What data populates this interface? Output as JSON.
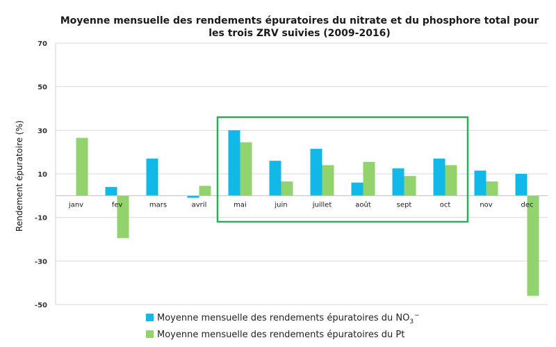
{
  "chart_data": {
    "type": "bar",
    "title_lines": [
      "Moyenne mensuelle des rendements épuratoires du nitrate et du phosphore total pour",
      "les trois ZRV suivies (2009-2016)"
    ],
    "ylabel": "Rendement épuratoire (%)",
    "xlabel": "",
    "ylim": [
      -50,
      70
    ],
    "yticks": [
      -50,
      -30,
      -10,
      10,
      30,
      50,
      70
    ],
    "grid": true,
    "legend_position": "bottom",
    "categories": [
      "janv",
      "fev",
      "mars",
      "avril",
      "mai",
      "juin",
      "juillet",
      "août",
      "sept",
      "oct",
      "nov",
      "dec"
    ],
    "series": [
      {
        "name": "Moyenne mensuelle des rendements épuratoires du NO3−",
        "legend_main": "Moyenne mensuelle des rendements épuratoires du NO",
        "legend_sub": "3",
        "legend_sup": "−",
        "color": "#12b8e8",
        "values": [
          null,
          4,
          17,
          -1,
          30,
          16,
          21.5,
          6,
          12.5,
          17,
          11.5,
          10
        ]
      },
      {
        "name": "Moyenne mensuelle des rendements épuratoires du Pt",
        "legend_main": "Moyenne mensuelle des rendements épuratoires du Pt",
        "color": "#92d36e",
        "values": [
          26.5,
          -19.5,
          null,
          4.5,
          24.5,
          6.5,
          14,
          15.5,
          9,
          14,
          6.5,
          -46
        ]
      }
    ],
    "highlight": {
      "from_category": "mai",
      "to_category": "oct",
      "color": "#21b15a"
    }
  }
}
